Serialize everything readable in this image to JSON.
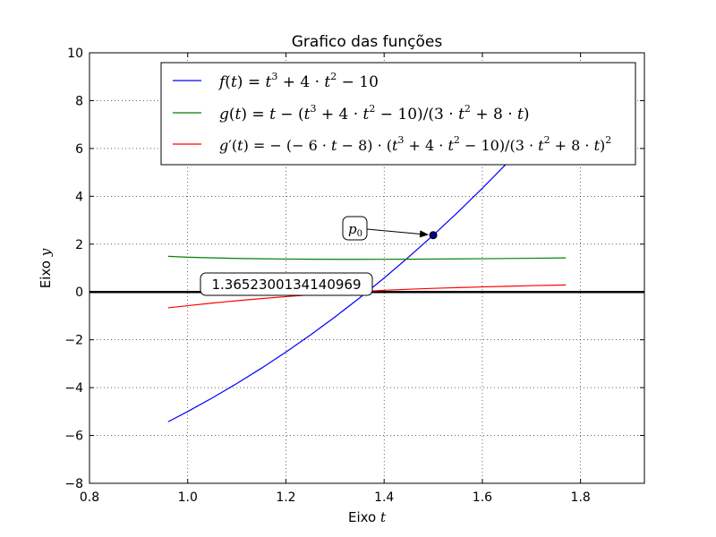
{
  "chart_data": {
    "type": "line",
    "title": "Grafico das funções",
    "xlabel": {
      "prefix": "Eixo ",
      "var": "t"
    },
    "ylabel": {
      "prefix": "Eixo ",
      "var": "y"
    },
    "xlim": [
      0.8,
      1.93
    ],
    "ylim": [
      -8,
      10
    ],
    "xticks": [
      0.8,
      1.0,
      1.2,
      1.4,
      1.6,
      1.8
    ],
    "xtick_labels": [
      "0.8",
      "1.0",
      "1.2",
      "1.4",
      "1.6",
      "1.8"
    ],
    "yticks": [
      -8,
      -6,
      -4,
      -2,
      0,
      2,
      4,
      6,
      8,
      10
    ],
    "ytick_labels": [
      "−8",
      "−6",
      "−4",
      "−2",
      "0",
      "2",
      "4",
      "6",
      "8",
      "10"
    ],
    "grid": true,
    "grid_style": "dotted",
    "legend_position": "upper-center",
    "horizontal_line": {
      "y": 0,
      "color": "#000000"
    },
    "x_range": [
      0.96,
      1.77
    ],
    "series": [
      {
        "name": "f(t) = t³ + 4·t² − 10",
        "color": "#0000ff",
        "x": [
          0.96,
          1.0,
          1.05,
          1.1,
          1.15,
          1.2,
          1.25,
          1.3,
          1.35,
          1.4,
          1.45,
          1.5,
          1.55,
          1.6,
          1.65,
          1.7,
          1.77
        ],
        "y": [
          -5.428,
          -5.0,
          -4.43,
          -3.829,
          -3.189,
          -2.512,
          -1.797,
          -1.043,
          -0.25,
          0.584,
          1.459,
          2.375,
          3.334,
          4.336,
          5.382,
          6.473,
          8.078
        ]
      },
      {
        "name": "g(t) = t − (t³ + 4·t² − 10)/(3·t² + 8·t)",
        "color": "#008000",
        "x": [
          0.96,
          1.0,
          1.05,
          1.1,
          1.15,
          1.2,
          1.25,
          1.3,
          1.35,
          1.4,
          1.45,
          1.5,
          1.55,
          1.6,
          1.65,
          1.7,
          1.77
        ],
        "y": [
          1.491,
          1.455,
          1.425,
          1.403,
          1.387,
          1.376,
          1.369,
          1.366,
          1.365,
          1.367,
          1.371,
          1.376,
          1.383,
          1.391,
          1.4,
          1.41,
          1.425
        ]
      },
      {
        "name": "g′(t) = −(−6·t − 8)·(t³ + 4·t² − 10)/(3·t² + 8·t)²",
        "color": "#ff0000",
        "x": [
          0.96,
          1.0,
          1.05,
          1.1,
          1.15,
          1.2,
          1.25,
          1.3,
          1.35,
          1.4,
          1.45,
          1.5,
          1.55,
          1.6,
          1.65,
          1.7,
          1.77
        ],
        "y": [
          -0.663,
          -0.574,
          -0.465,
          -0.367,
          -0.278,
          -0.196,
          -0.121,
          -0.052,
          0.012,
          0.071,
          0.114,
          0.15,
          0.182,
          0.211,
          0.239,
          0.264,
          0.294
        ]
      }
    ],
    "point": {
      "label": "p",
      "subscript": "0",
      "x": 1.5,
      "y": 2.375
    },
    "root_annotation": {
      "text": "1.3652300134140969",
      "x": 1.3652300134140969,
      "y": 0
    }
  }
}
